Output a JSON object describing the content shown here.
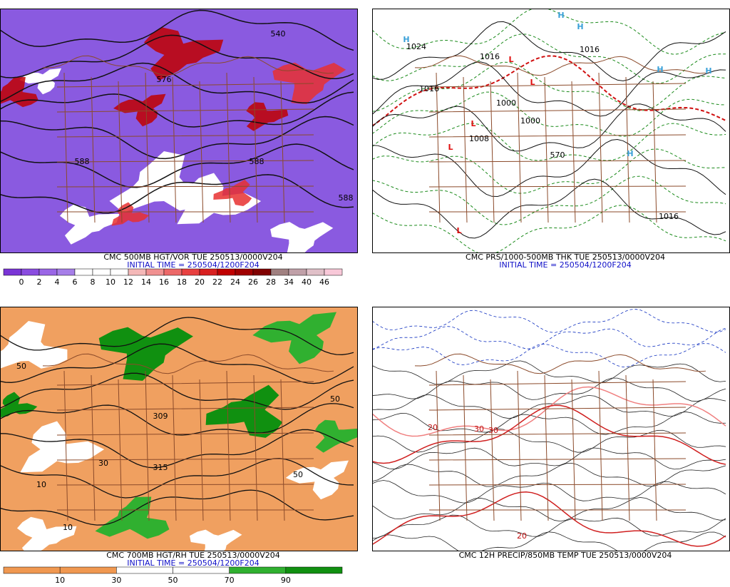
{
  "panels": [
    {
      "caption": "CMC 500MB HGT/VOR TUE 250513/0000V204",
      "initial_time": "INITIAL TIME = 250504/1200F204",
      "colorbar": {
        "labels": [
          0,
          2,
          4,
          6,
          8,
          10,
          12,
          14,
          16,
          18,
          20,
          22,
          24,
          26,
          28,
          34,
          40,
          46
        ],
        "colors": [
          "#7a34d6",
          "#8a4ce0",
          "#9a66e6",
          "#a67ee8",
          "#ffffff",
          "#ffffff",
          "#ffffff",
          "#f4b8b8",
          "#f09090",
          "#ec6868",
          "#e84040",
          "#d82020",
          "#c00000",
          "#a00000",
          "#800000",
          "#a08080",
          "#c0a0a8",
          "#e0c0c8",
          "#f8c8d8"
        ]
      },
      "map_labels": [
        "540",
        "588",
        "576",
        "588",
        "588"
      ]
    },
    {
      "caption": "CMC PRS/1000-500MB THK TUE 250513/0000V204",
      "initial_time": "INITIAL TIME = 250504/1200F204",
      "map_labels": [
        "H",
        "H",
        "H",
        "H",
        "H",
        "H",
        "L",
        "L",
        "L",
        "L",
        "L",
        "1024",
        "1016",
        "1016",
        "1000",
        "1000",
        "1008",
        "570",
        "1016",
        "1016"
      ]
    },
    {
      "caption": "CMC 700MB HGT/RH TUE 250513/0000V204",
      "initial_time": "INITIAL TIME = 250504/1200F204",
      "colorbar": {
        "labels": [
          10,
          30,
          50,
          70,
          90
        ],
        "colors": [
          "#f09850",
          "#f09850",
          "#ffffff",
          "#ffffff",
          "#30b030",
          "#109010"
        ]
      },
      "map_labels": [
        "50",
        "10",
        "30",
        "309",
        "315",
        "50",
        "10",
        "50"
      ]
    },
    {
      "caption": "CMC 12H PRECIP/850MB TEMP TUE 250513/0000V204",
      "map_labels": [
        "30",
        "30",
        "20",
        "20"
      ]
    }
  ]
}
